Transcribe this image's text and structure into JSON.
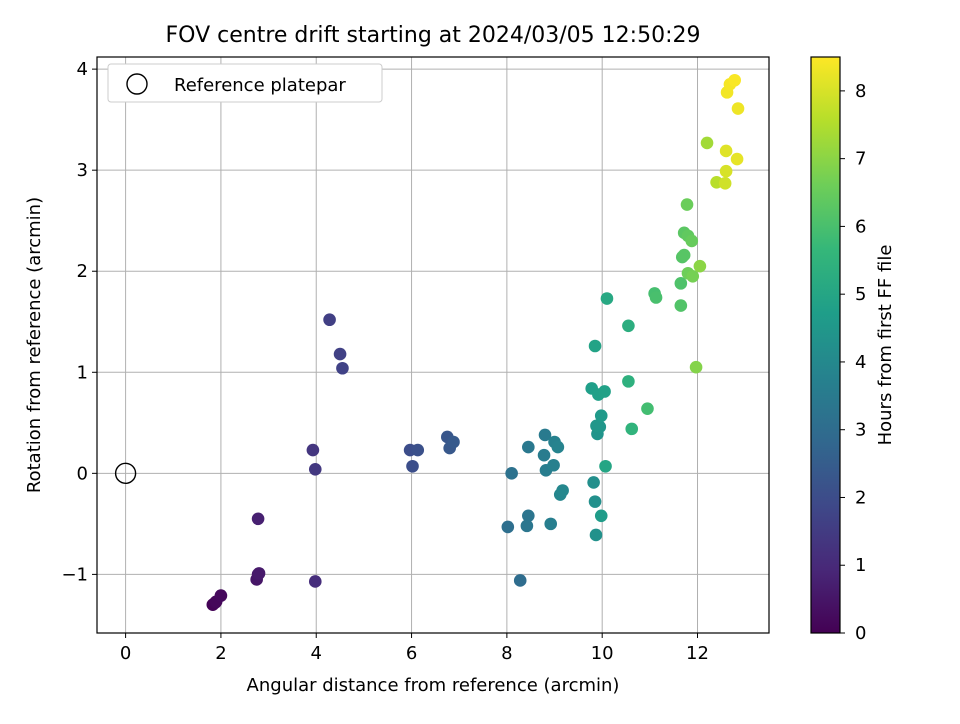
{
  "chart_data": {
    "type": "scatter",
    "title": "FOV centre drift starting at 2024/03/05 12:50:29",
    "xlabel": "Angular distance from reference (arcmin)",
    "ylabel": "Rotation from reference (arcmin)",
    "xlim": [
      -0.6,
      13.5
    ],
    "ylim": [
      -1.58,
      4.12
    ],
    "xticks": [
      0,
      2,
      4,
      6,
      8,
      10,
      12
    ],
    "yticks": [
      -1,
      0,
      1,
      2,
      3,
      4
    ],
    "grid": true,
    "legend": {
      "placement": "top-left",
      "entries": [
        "Reference platepar"
      ]
    },
    "reference_point": {
      "x": 0,
      "y": 0
    },
    "colorbar": {
      "label": "Hours from first FF file",
      "range": [
        0,
        8.5
      ],
      "ticks": [
        0,
        1,
        2,
        3,
        4,
        5,
        6,
        7,
        8
      ],
      "colormap": "viridis",
      "colormap_stops": [
        "#440154",
        "#482878",
        "#3e4989",
        "#31688e",
        "#26828e",
        "#1f9e89",
        "#35b779",
        "#6ece58",
        "#b5de2b",
        "#fde725"
      ]
    },
    "series": [
      {
        "points": [
          {
            "x": 1.83,
            "y": -1.3,
            "c": 0.05
          },
          {
            "x": 1.88,
            "y": -1.28,
            "c": 0.1
          },
          {
            "x": 1.9,
            "y": -1.27,
            "c": 0.15
          },
          {
            "x": 2.0,
            "y": -1.21,
            "c": 0.2
          },
          {
            "x": 2.75,
            "y": -1.05,
            "c": 0.5
          },
          {
            "x": 2.78,
            "y": -1.0,
            "c": 0.55
          },
          {
            "x": 2.8,
            "y": -0.99,
            "c": 0.6
          },
          {
            "x": 2.78,
            "y": -0.45,
            "c": 0.75
          },
          {
            "x": 3.98,
            "y": -1.07,
            "c": 1.1
          },
          {
            "x": 3.93,
            "y": 0.23,
            "c": 1.35
          },
          {
            "x": 3.98,
            "y": 0.04,
            "c": 1.4
          },
          {
            "x": 4.28,
            "y": 1.52,
            "c": 1.6
          },
          {
            "x": 4.5,
            "y": 1.18,
            "c": 1.65
          },
          {
            "x": 4.55,
            "y": 1.04,
            "c": 1.7
          },
          {
            "x": 5.97,
            "y": 0.23,
            "c": 2.0
          },
          {
            "x": 6.02,
            "y": 0.07,
            "c": 2.05
          },
          {
            "x": 6.13,
            "y": 0.23,
            "c": 2.1
          },
          {
            "x": 6.75,
            "y": 0.36,
            "c": 2.3
          },
          {
            "x": 6.8,
            "y": 0.25,
            "c": 2.35
          },
          {
            "x": 6.88,
            "y": 0.31,
            "c": 2.4
          },
          {
            "x": 8.28,
            "y": -1.06,
            "c": 3.0
          },
          {
            "x": 8.02,
            "y": -0.53,
            "c": 3.1
          },
          {
            "x": 8.1,
            "y": 0.0,
            "c": 3.2
          },
          {
            "x": 8.45,
            "y": -0.42,
            "c": 3.3
          },
          {
            "x": 8.42,
            "y": -0.52,
            "c": 3.35
          },
          {
            "x": 8.45,
            "y": 0.26,
            "c": 3.4
          },
          {
            "x": 8.8,
            "y": 0.38,
            "c": 3.5
          },
          {
            "x": 8.78,
            "y": 0.18,
            "c": 3.55
          },
          {
            "x": 8.82,
            "y": 0.03,
            "c": 3.6
          },
          {
            "x": 8.92,
            "y": -0.5,
            "c": 3.65
          },
          {
            "x": 8.98,
            "y": 0.08,
            "c": 3.7
          },
          {
            "x": 9.0,
            "y": 0.31,
            "c": 3.75
          },
          {
            "x": 9.07,
            "y": 0.26,
            "c": 3.8
          },
          {
            "x": 9.12,
            "y": -0.21,
            "c": 3.9
          },
          {
            "x": 9.17,
            "y": -0.17,
            "c": 3.95
          },
          {
            "x": 9.82,
            "y": -0.09,
            "c": 4.2
          },
          {
            "x": 9.85,
            "y": -0.28,
            "c": 4.25
          },
          {
            "x": 9.87,
            "y": -0.61,
            "c": 4.3
          },
          {
            "x": 9.9,
            "y": 0.39,
            "c": 4.4
          },
          {
            "x": 9.95,
            "y": 0.46,
            "c": 4.45
          },
          {
            "x": 9.88,
            "y": 0.47,
            "c": 4.5
          },
          {
            "x": 9.98,
            "y": 0.57,
            "c": 4.6
          },
          {
            "x": 9.98,
            "y": -0.42,
            "c": 4.65
          },
          {
            "x": 9.78,
            "y": 0.84,
            "c": 4.75
          },
          {
            "x": 9.92,
            "y": 0.78,
            "c": 4.8
          },
          {
            "x": 10.05,
            "y": 0.81,
            "c": 4.85
          },
          {
            "x": 9.85,
            "y": 1.26,
            "c": 4.9
          },
          {
            "x": 10.07,
            "y": 0.07,
            "c": 5.0
          },
          {
            "x": 10.1,
            "y": 1.73,
            "c": 5.1
          },
          {
            "x": 10.55,
            "y": 1.46,
            "c": 5.3
          },
          {
            "x": 10.55,
            "y": 0.91,
            "c": 5.4
          },
          {
            "x": 10.62,
            "y": 0.44,
            "c": 5.5
          },
          {
            "x": 10.95,
            "y": 0.64,
            "c": 5.9
          },
          {
            "x": 11.1,
            "y": 1.78,
            "c": 5.95
          },
          {
            "x": 11.13,
            "y": 1.74,
            "c": 6.0
          },
          {
            "x": 11.65,
            "y": 1.88,
            "c": 6.1
          },
          {
            "x": 11.65,
            "y": 1.66,
            "c": 6.15
          },
          {
            "x": 11.68,
            "y": 2.14,
            "c": 6.2
          },
          {
            "x": 11.72,
            "y": 2.16,
            "c": 6.25
          },
          {
            "x": 11.72,
            "y": 2.38,
            "c": 6.3
          },
          {
            "x": 11.8,
            "y": 2.35,
            "c": 6.4
          },
          {
            "x": 11.88,
            "y": 2.3,
            "c": 6.5
          },
          {
            "x": 11.78,
            "y": 2.66,
            "c": 6.55
          },
          {
            "x": 11.8,
            "y": 1.98,
            "c": 6.6
          },
          {
            "x": 11.9,
            "y": 1.95,
            "c": 6.7
          },
          {
            "x": 11.97,
            "y": 1.05,
            "c": 6.9
          },
          {
            "x": 12.05,
            "y": 2.05,
            "c": 7.0
          },
          {
            "x": 12.2,
            "y": 3.27,
            "c": 7.3
          },
          {
            "x": 12.4,
            "y": 2.88,
            "c": 7.6
          },
          {
            "x": 12.58,
            "y": 2.87,
            "c": 7.9
          },
          {
            "x": 12.6,
            "y": 2.99,
            "c": 8.0
          },
          {
            "x": 12.6,
            "y": 3.19,
            "c": 8.1
          },
          {
            "x": 12.83,
            "y": 3.11,
            "c": 8.2
          },
          {
            "x": 12.85,
            "y": 3.61,
            "c": 8.3
          },
          {
            "x": 12.62,
            "y": 3.77,
            "c": 8.35
          },
          {
            "x": 12.68,
            "y": 3.85,
            "c": 8.4
          },
          {
            "x": 12.78,
            "y": 3.89,
            "c": 8.45
          }
        ]
      }
    ]
  }
}
